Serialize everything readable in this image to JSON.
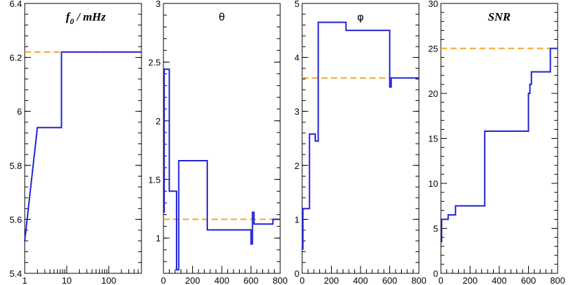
{
  "chart_data": [
    {
      "type": "line",
      "title": "f0 / mHz",
      "title_main": "f",
      "title_sub": "0",
      "title_rest": " / mHz",
      "xscale": "log",
      "xlim": [
        1,
        600
      ],
      "ylim": [
        5.4,
        6.4
      ],
      "xticks": [
        1,
        10,
        100
      ],
      "xtick_labels": [
        "1",
        "10",
        "100"
      ],
      "yticks": [
        5.4,
        5.6,
        5.8,
        6.0,
        6.2,
        6.4
      ],
      "ytick_labels": [
        "5.4",
        "5.6",
        "5.8",
        "6",
        "6.2",
        "6.4"
      ],
      "series": [
        {
          "color": "#1f1fd6",
          "x": [
            1,
            2,
            2,
            7.5,
            7.5,
            600
          ],
          "y": [
            5.52,
            5.94,
            5.94,
            5.94,
            6.22,
            6.22
          ]
        }
      ],
      "reference": {
        "y": 6.22,
        "color": "#f5a623"
      }
    },
    {
      "type": "line",
      "title": "θ",
      "xlim": [
        0,
        800
      ],
      "ylim": [
        0.7,
        3.0
      ],
      "xticks": [
        0,
        200,
        400,
        600,
        800
      ],
      "xtick_labels": [
        "0",
        "200",
        "400",
        "600",
        "800"
      ],
      "yticks": [
        1,
        1.5,
        2,
        2.5,
        3
      ],
      "ytick_labels": [
        "1",
        "1.5",
        "2",
        "2.5",
        "3"
      ],
      "series": [
        {
          "color": "#1f1fd6",
          "x": [
            0,
            5,
            5,
            40,
            40,
            50,
            50,
            90,
            90,
            105,
            105,
            300,
            300,
            600,
            600,
            610,
            610,
            620,
            620,
            750,
            750,
            800
          ],
          "y": [
            1.22,
            1.22,
            2.44,
            2.44,
            1.4,
            1.4,
            1.4,
            1.4,
            0.73,
            0.73,
            1.66,
            1.66,
            1.07,
            1.07,
            0.95,
            0.95,
            1.22,
            1.22,
            1.12,
            1.12,
            1.16,
            1.16
          ]
        }
      ],
      "reference": {
        "y": 1.16,
        "color": "#f5a623"
      }
    },
    {
      "type": "line",
      "title": "φ",
      "xlim": [
        0,
        800
      ],
      "ylim": [
        0,
        5
      ],
      "xticks": [
        0,
        200,
        400,
        600,
        800
      ],
      "xtick_labels": [
        "0",
        "200",
        "400",
        "600",
        "800"
      ],
      "yticks": [
        0,
        1,
        2,
        3,
        4,
        5
      ],
      "ytick_labels": [
        "0",
        "1",
        "2",
        "3",
        "4",
        "5"
      ],
      "series": [
        {
          "color": "#1f1fd6",
          "x": [
            0,
            5,
            5,
            10,
            10,
            50,
            50,
            90,
            90,
            110,
            110,
            300,
            300,
            600,
            600,
            610,
            610,
            800
          ],
          "y": [
            0.45,
            0.45,
            1.2,
            1.2,
            1.2,
            1.2,
            2.58,
            2.58,
            2.45,
            2.45,
            4.65,
            4.65,
            4.5,
            4.5,
            3.45,
            3.45,
            3.62,
            3.62
          ]
        }
      ],
      "reference": {
        "y": 3.62,
        "color": "#f5a623"
      }
    },
    {
      "type": "line",
      "title": "SNR",
      "xlim": [
        0,
        800
      ],
      "ylim": [
        0,
        30
      ],
      "xticks": [
        0,
        200,
        400,
        600,
        800
      ],
      "xtick_labels": [
        "0",
        "200",
        "400",
        "600",
        "800"
      ],
      "yticks": [
        0,
        5,
        10,
        15,
        20,
        25,
        30
      ],
      "ytick_labels": [
        "0",
        "5",
        "10",
        "15",
        "20",
        "25",
        "30"
      ],
      "series": [
        {
          "color": "#1f1fd6",
          "x": [
            0,
            5,
            5,
            50,
            50,
            100,
            100,
            300,
            300,
            600,
            600,
            610,
            610,
            620,
            620,
            750,
            750,
            800
          ],
          "y": [
            3.5,
            3.5,
            6.0,
            6.0,
            6.5,
            6.5,
            7.5,
            7.5,
            15.8,
            15.8,
            20.0,
            20.0,
            21.0,
            21.0,
            22.4,
            22.4,
            25.0,
            25.0
          ]
        }
      ],
      "reference": {
        "y": 25.0,
        "color": "#f5a623"
      }
    }
  ]
}
